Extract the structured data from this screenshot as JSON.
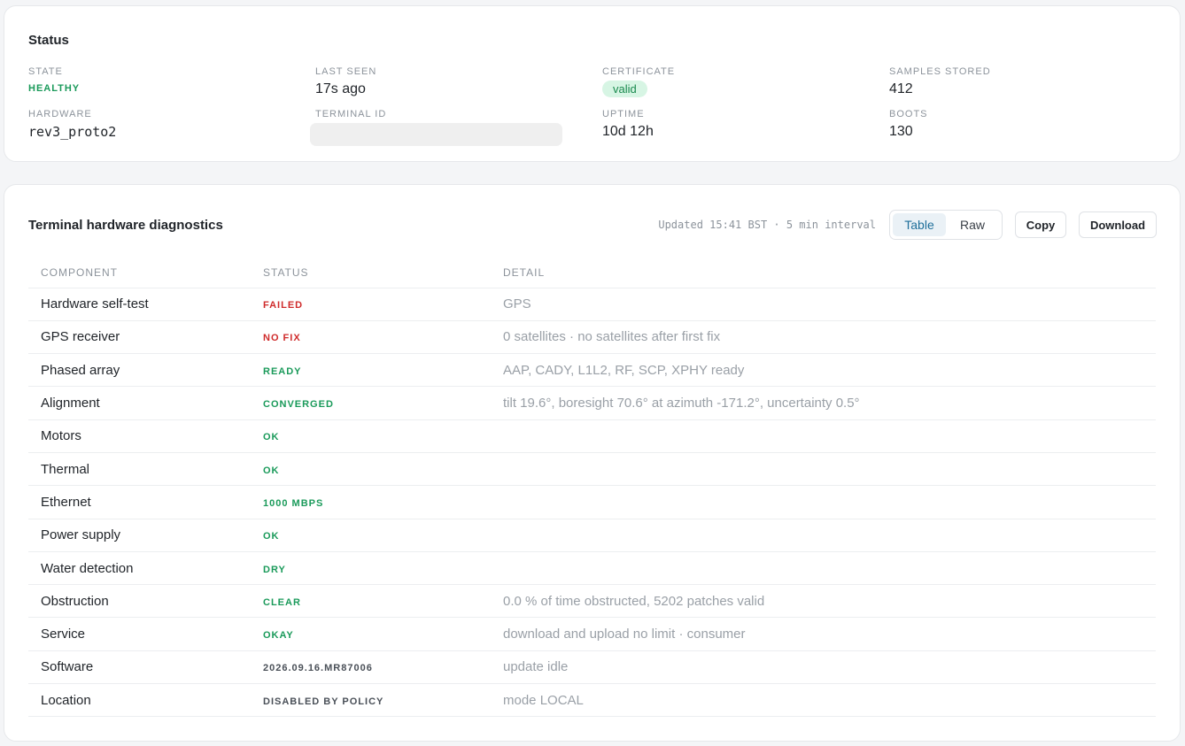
{
  "status": {
    "title": "Status",
    "state": {
      "label": "STATE",
      "value": "HEALTHY"
    },
    "last_seen": {
      "label": "LAST SEEN",
      "value": "17s ago"
    },
    "certificate": {
      "label": "CERTIFICATE",
      "value": "valid"
    },
    "samples": {
      "label": "SAMPLES STORED",
      "value": "412"
    },
    "hardware": {
      "label": "HARDWARE",
      "value": "rev3_proto2"
    },
    "terminal_id": {
      "label": "TERMINAL ID",
      "value": ""
    },
    "uptime": {
      "label": "UPTIME",
      "value": "10d 12h"
    },
    "boots": {
      "label": "BOOTS",
      "value": "130"
    }
  },
  "diagnostics": {
    "title": "Terminal hardware diagnostics",
    "updated": "Updated 15:41 BST · 5 min interval",
    "view_table": "Table",
    "view_raw": "Raw",
    "copy_label": "Copy",
    "download_label": "Download",
    "columns": {
      "component": "COMPONENT",
      "status": "STATUS",
      "detail": "DETAIL"
    },
    "colors": {
      "ok": "#1a9a5a",
      "fail": "#cf2b2b",
      "neutral": "#4a5058"
    },
    "rows": [
      {
        "component": "Hardware self-test",
        "status": "FAILED",
        "tone": "fail",
        "detail": "GPS"
      },
      {
        "component": "GPS receiver",
        "status": "NO FIX",
        "tone": "fail",
        "detail": "0 satellites · no satellites after first fix"
      },
      {
        "component": "Phased array",
        "status": "READY",
        "tone": "ok",
        "detail": "AAP, CADY, L1L2, RF, SCP, XPHY ready"
      },
      {
        "component": "Alignment",
        "status": "CONVERGED",
        "tone": "ok",
        "detail": "tilt 19.6°, boresight 70.6° at azimuth -171.2°, uncertainty 0.5°"
      },
      {
        "component": "Motors",
        "status": "OK",
        "tone": "ok",
        "detail": ""
      },
      {
        "component": "Thermal",
        "status": "OK",
        "tone": "ok",
        "detail": ""
      },
      {
        "component": "Ethernet",
        "status": "1000 MBPS",
        "tone": "ok",
        "detail": ""
      },
      {
        "component": "Power supply",
        "status": "OK",
        "tone": "ok",
        "detail": ""
      },
      {
        "component": "Water detection",
        "status": "DRY",
        "tone": "ok",
        "detail": ""
      },
      {
        "component": "Obstruction",
        "status": "CLEAR",
        "tone": "ok",
        "detail": "0.0 % of time obstructed, 5202 patches valid"
      },
      {
        "component": "Service",
        "status": "OKAY",
        "tone": "ok",
        "detail": "download and upload no limit · consumer"
      },
      {
        "component": "Software",
        "status": "2026.09.16.MR87006",
        "tone": "neutral",
        "detail": "update idle"
      },
      {
        "component": "Location",
        "status": "DISABLED BY POLICY",
        "tone": "neutral",
        "detail": "mode LOCAL"
      }
    ]
  }
}
